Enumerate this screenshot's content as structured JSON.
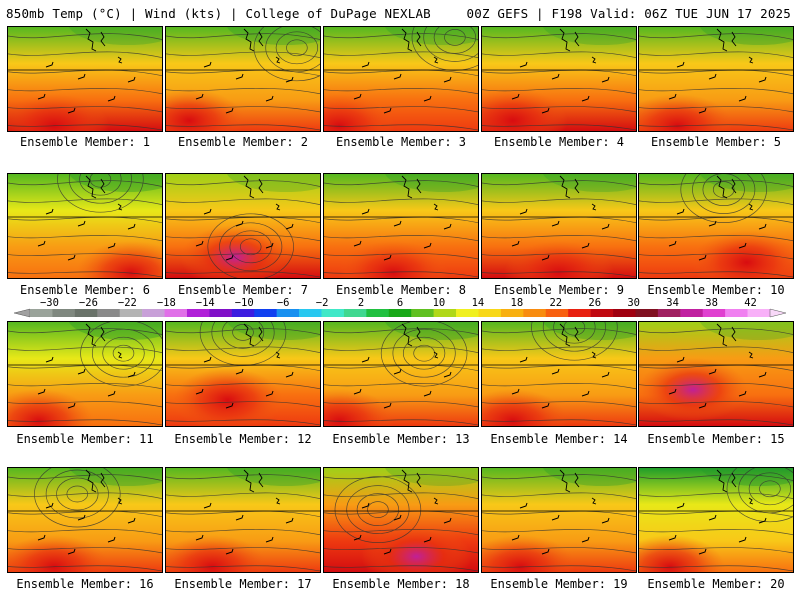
{
  "header": {
    "left": "850mb Temp (°C) | Wind (kts) | College of DuPage NEXLAB",
    "right": "00Z GEFS | F198 Valid: 06Z TUE JUN 17 2025"
  },
  "members": [
    {
      "label": "Ensemble Member: 1",
      "warmth": 0.72,
      "blob": [
        0.3,
        0.95
      ],
      "low": null
    },
    {
      "label": "Ensemble Member: 2",
      "warmth": 0.6,
      "blob": [
        0.15,
        0.9
      ],
      "low": [
        0.85,
        0.2
      ]
    },
    {
      "label": "Ensemble Member: 3",
      "warmth": 0.65,
      "blob": [
        0.1,
        0.95
      ],
      "low": [
        0.85,
        0.1
      ]
    },
    {
      "label": "Ensemble Member: 4",
      "warmth": 0.72,
      "blob": [
        0.2,
        0.9
      ],
      "low": null
    },
    {
      "label": "Ensemble Member: 5",
      "warmth": 0.62,
      "blob": [
        0.25,
        0.95
      ],
      "low": null
    },
    {
      "label": "Ensemble Member: 6",
      "warmth": 0.45,
      "blob": [
        0.8,
        0.95
      ],
      "low": [
        0.6,
        0.05
      ]
    },
    {
      "label": "Ensemble Member: 7",
      "warmth": 0.8,
      "blob": [
        0.45,
        0.8
      ],
      "low": [
        0.55,
        0.7
      ]
    },
    {
      "label": "Ensemble Member: 8",
      "warmth": 0.66,
      "blob": [
        0.45,
        0.95
      ],
      "low": null
    },
    {
      "label": "Ensemble Member: 9",
      "warmth": 0.72,
      "blob": [
        0.5,
        0.95
      ],
      "low": null
    },
    {
      "label": "Ensemble Member: 10",
      "warmth": 0.68,
      "blob": [
        0.7,
        0.85
      ],
      "low": [
        0.55,
        0.15
      ]
    },
    {
      "label": "Ensemble Member: 11",
      "warmth": 0.45,
      "blob": [
        0.2,
        0.95
      ],
      "low": [
        0.75,
        0.3
      ]
    },
    {
      "label": "Ensemble Member: 12",
      "warmth": 0.66,
      "blob": [
        0.4,
        0.75
      ],
      "low": [
        0.5,
        0.1
      ]
    },
    {
      "label": "Ensemble Member: 13",
      "warmth": 0.52,
      "blob": [
        0.1,
        0.95
      ],
      "low": [
        0.65,
        0.3
      ]
    },
    {
      "label": "Ensemble Member: 14",
      "warmth": 0.58,
      "blob": [
        0.2,
        0.95
      ],
      "low": [
        0.6,
        0.05
      ]
    },
    {
      "label": "Ensemble Member: 15",
      "warmth": 0.85,
      "blob": [
        0.35,
        0.65
      ],
      "low": null
    },
    {
      "label": "Ensemble Member: 16",
      "warmth": 0.55,
      "blob": [
        0.3,
        0.95
      ],
      "low": [
        0.45,
        0.25
      ]
    },
    {
      "label": "Ensemble Member: 17",
      "warmth": 0.6,
      "blob": [
        0.3,
        0.95
      ],
      "low": null
    },
    {
      "label": "Ensemble Member: 18",
      "warmth": 0.88,
      "blob": [
        0.6,
        0.85
      ],
      "low": [
        0.35,
        0.4
      ]
    },
    {
      "label": "Ensemble Member: 19",
      "warmth": 0.58,
      "blob": [
        0.25,
        0.95
      ],
      "low": null
    },
    {
      "label": "Ensemble Member: 20",
      "warmth": 0.35,
      "blob": [
        0.2,
        0.95
      ],
      "low": [
        0.85,
        0.2
      ]
    }
  ],
  "colorbar": {
    "ticks": [
      "-30",
      "-26",
      "-22",
      "-18",
      "-14",
      "-10",
      "-6",
      "-2",
      "2",
      "6",
      "10",
      "14",
      "18",
      "22",
      "26",
      "30",
      "34",
      "38",
      "42"
    ],
    "colors": [
      "#9aa39a",
      "#7f887f",
      "#6a736a",
      "#8a8a8a",
      "#b4b4b4",
      "#c8a0d8",
      "#e070e8",
      "#b020d8",
      "#8010c8",
      "#3c1ce0",
      "#1040f0",
      "#1890f0",
      "#28c8f0",
      "#40e8c8",
      "#40d890",
      "#20c040",
      "#18a818",
      "#60c020",
      "#b0d818",
      "#f0f020",
      "#f8d818",
      "#f8b010",
      "#f88c10",
      "#f86010",
      "#e82010",
      "#c00810",
      "#a00010",
      "#801020",
      "#a02060",
      "#c020a0",
      "#e040d0",
      "#f080f0",
      "#f8b0f8"
    ]
  }
}
